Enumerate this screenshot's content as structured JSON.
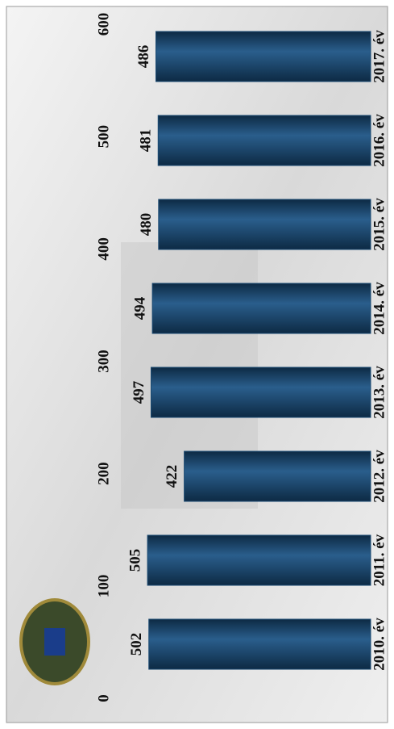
{
  "chart_data": {
    "type": "bar",
    "categories": [
      "2010. év",
      "2011. év",
      "2012. év",
      "2013. év",
      "2014. év",
      "2015. év",
      "2016. év",
      "2017. év"
    ],
    "values": [
      502,
      505,
      422,
      497,
      494,
      480,
      481,
      486
    ],
    "color": "#1b4a72",
    "ylim": [
      0,
      600
    ],
    "yticks": [
      0,
      100,
      200,
      300,
      400,
      500,
      600
    ],
    "grid": false
  }
}
